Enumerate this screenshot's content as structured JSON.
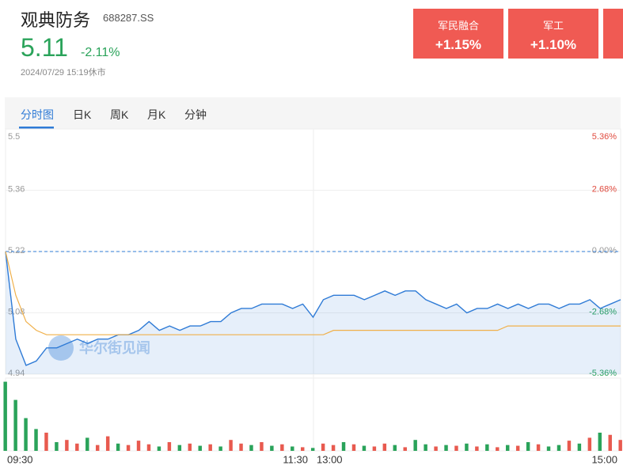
{
  "header": {
    "title": "观典防务",
    "code": "688287.SS",
    "price": "5.11",
    "change": "-2.11%",
    "time": "2024/07/29 15:19休市"
  },
  "sectors": [
    {
      "name": "军民融合",
      "change": "+1.15%"
    },
    {
      "name": "军工",
      "change": "+1.10%"
    }
  ],
  "tabs": [
    "分时图",
    "日K",
    "周K",
    "月K",
    "分钟"
  ],
  "watermark": "华尔街见闻",
  "chart_data": {
    "type": "line",
    "x_labels": [
      "09:30",
      "11:30",
      "13:00",
      "15:00"
    ],
    "ylim": [
      4.94,
      5.5
    ],
    "yticks": [
      5.5,
      5.36,
      5.22,
      5.08,
      4.94
    ],
    "y2lim": [
      -5.36,
      5.36
    ],
    "y2ticks": [
      {
        "value": 5.36,
        "label": "5.36%"
      },
      {
        "value": 2.68,
        "label": "2.68%"
      },
      {
        "value": 0,
        "label": "0.00%"
      },
      {
        "value": -2.68,
        "label": "-2.68%"
      },
      {
        "value": -5.36,
        "label": "-5.36%"
      }
    ],
    "prev_close": 5.22,
    "series": [
      {
        "color": "#2f7bd6",
        "values": [
          5.22,
          5.02,
          4.96,
          4.97,
          5.0,
          5.0,
          5.01,
          5.02,
          5.01,
          5.02,
          5.02,
          5.03,
          5.03,
          5.04,
          5.06,
          5.04,
          5.05,
          5.04,
          5.05,
          5.05,
          5.06,
          5.06,
          5.08,
          5.09,
          5.09,
          5.1,
          5.1,
          5.1,
          5.09,
          5.1,
          5.07,
          5.11,
          5.12,
          5.12,
          5.12,
          5.11,
          5.12,
          5.13,
          5.12,
          5.13,
          5.13,
          5.11,
          5.1,
          5.09,
          5.1,
          5.08,
          5.09,
          5.09,
          5.1,
          5.09,
          5.1,
          5.09,
          5.1,
          5.1,
          5.09,
          5.1,
          5.1,
          5.11,
          5.09,
          5.1,
          5.11
        ]
      },
      {
        "color": "#f0b04a",
        "values": [
          5.22,
          5.12,
          5.06,
          5.04,
          5.03,
          5.03,
          5.03,
          5.03,
          5.03,
          5.03,
          5.03,
          5.03,
          5.03,
          5.03,
          5.03,
          5.03,
          5.03,
          5.03,
          5.03,
          5.03,
          5.03,
          5.03,
          5.03,
          5.03,
          5.03,
          5.03,
          5.03,
          5.03,
          5.03,
          5.03,
          5.03,
          5.03,
          5.04,
          5.04,
          5.04,
          5.04,
          5.04,
          5.04,
          5.04,
          5.04,
          5.04,
          5.04,
          5.04,
          5.04,
          5.04,
          5.04,
          5.04,
          5.04,
          5.04,
          5.05,
          5.05,
          5.05,
          5.05,
          5.05,
          5.05,
          5.05,
          5.05,
          5.05,
          5.05,
          5.05,
          5.05
        ]
      }
    ],
    "volume": {
      "ylim": [
        0,
        100
      ],
      "values": [
        95,
        70,
        45,
        30,
        25,
        12,
        15,
        10,
        18,
        8,
        20,
        10,
        8,
        14,
        9,
        6,
        12,
        8,
        10,
        7,
        9,
        6,
        15,
        10,
        8,
        12,
        7,
        9,
        6,
        5,
        4,
        10,
        8,
        12,
        9,
        7,
        6,
        10,
        8,
        5,
        15,
        9,
        6,
        8,
        7,
        10,
        6,
        9,
        5,
        8,
        7,
        12,
        9,
        6,
        8,
        14,
        10,
        18,
        25,
        22,
        15
      ],
      "colors": [
        "#2aa35a",
        "#2aa35a",
        "#2aa35a",
        "#2aa35a",
        "#e85a4f",
        "#2aa35a",
        "#e85a4f",
        "#e85a4f",
        "#2aa35a",
        "#e85a4f",
        "#e85a4f",
        "#2aa35a",
        "#e85a4f",
        "#e85a4f",
        "#e85a4f",
        "#2aa35a",
        "#e85a4f",
        "#2aa35a",
        "#e85a4f",
        "#2aa35a",
        "#e85a4f",
        "#2aa35a",
        "#e85a4f",
        "#e85a4f",
        "#2aa35a",
        "#e85a4f",
        "#2aa35a",
        "#e85a4f",
        "#2aa35a",
        "#e85a4f",
        "#2aa35a",
        "#e85a4f",
        "#e85a4f",
        "#2aa35a",
        "#e85a4f",
        "#2aa35a",
        "#e85a4f",
        "#e85a4f",
        "#2aa35a",
        "#e85a4f",
        "#2aa35a",
        "#2aa35a",
        "#e85a4f",
        "#2aa35a",
        "#e85a4f",
        "#2aa35a",
        "#e85a4f",
        "#2aa35a",
        "#e85a4f",
        "#2aa35a",
        "#e85a4f",
        "#2aa35a",
        "#e85a4f",
        "#2aa35a",
        "#2aa35a",
        "#e85a4f",
        "#2aa35a",
        "#e85a4f",
        "#2aa35a",
        "#e85a4f",
        "#e85a4f"
      ]
    }
  }
}
